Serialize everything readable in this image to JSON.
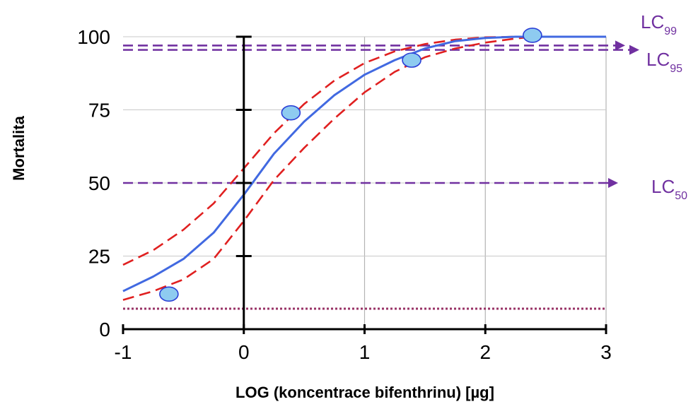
{
  "chart_data": {
    "type": "line",
    "title": "",
    "xlabel": "LOG (koncentrace bifenthrinu) [µg]",
    "ylabel": "Mortalita",
    "xlim": [
      -1,
      3
    ],
    "ylim": [
      0,
      100
    ],
    "x_ticks": [
      "-1",
      "0",
      "1",
      "2",
      "3"
    ],
    "y_ticks": [
      "0",
      "25",
      "50",
      "75",
      "100"
    ],
    "vertical_grid": true,
    "horizontal_grid": true,
    "observed_points": [
      {
        "x": -0.62,
        "y": 12
      },
      {
        "x": 0.39,
        "y": 74
      },
      {
        "x": 1.39,
        "y": 92
      },
      {
        "x": 2.39,
        "y": 100.5
      }
    ],
    "fitted_curve": {
      "color": "#4169E1",
      "x": [
        -1,
        -0.75,
        -0.5,
        -0.25,
        0,
        0.25,
        0.5,
        0.75,
        1,
        1.25,
        1.5,
        1.75,
        2,
        2.25,
        2.5,
        3
      ],
      "y": [
        13,
        18,
        24,
        33,
        46,
        60,
        71,
        80,
        87,
        92,
        96,
        98.5,
        99.6,
        100,
        100,
        100
      ]
    },
    "confidence_upper": {
      "color": "#E02020",
      "x": [
        -1,
        -0.75,
        -0.5,
        -0.25,
        0,
        0.25,
        0.5,
        0.75,
        1,
        1.25,
        1.5,
        1.75,
        2,
        2.25,
        2.4
      ],
      "y": [
        22,
        27,
        34,
        43,
        55,
        67,
        77,
        85,
        91,
        95,
        97.5,
        99,
        99.8,
        100,
        100
      ]
    },
    "confidence_lower": {
      "color": "#E02020",
      "x": [
        -1,
        -0.75,
        -0.5,
        -0.25,
        0,
        0.25,
        0.5,
        0.75,
        1,
        1.25,
        1.5,
        1.75,
        2,
        2.25,
        2.4
      ],
      "y": [
        10,
        13,
        17,
        24,
        37,
        51,
        62,
        72,
        81,
        88,
        93,
        96,
        98,
        99.4,
        100
      ]
    },
    "control_mortality_line": {
      "y": 7,
      "color": "#993366"
    },
    "lc_lines": [
      {
        "name": "LC",
        "sub": "99",
        "y": 97,
        "color": "#7030A0"
      },
      {
        "name": "LC",
        "sub": "95",
        "y": 95.5,
        "color": "#7030A0"
      },
      {
        "name": "LC",
        "sub": "50",
        "y": 50,
        "color": "#7030A0"
      }
    ]
  }
}
